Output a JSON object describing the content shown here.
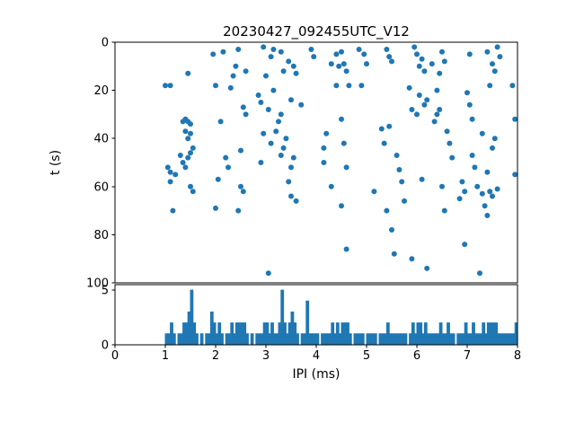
{
  "figure": {
    "background": "#ffffff",
    "accent": "#1f77b4",
    "spine_color": "#000000"
  },
  "chart_data": [
    {
      "type": "scatter",
      "title": "20230427_092455UTC_V12",
      "xlabel": "",
      "ylabel": "t (s)",
      "xlim": [
        0,
        8
      ],
      "ylim": [
        0,
        100
      ],
      "y_inverted": true,
      "yticks": [
        0,
        20,
        40,
        60,
        80,
        100
      ],
      "grid": false,
      "legend": "none",
      "marker_color": "#1f77b4",
      "points": [
        [
          1.95,
          5
        ],
        [
          2.45,
          3
        ],
        [
          2.95,
          2
        ],
        [
          3.1,
          6
        ],
        [
          3.3,
          4
        ],
        [
          3.45,
          8
        ],
        [
          3.9,
          3
        ],
        [
          3.95,
          6
        ],
        [
          4.4,
          5
        ],
        [
          4.5,
          4
        ],
        [
          4.85,
          3
        ],
        [
          5.4,
          3
        ],
        [
          5.45,
          6
        ],
        [
          6.0,
          5
        ],
        [
          6.1,
          7
        ],
        [
          6.5,
          4
        ],
        [
          7.4,
          4
        ],
        [
          7.6,
          2
        ],
        [
          7.65,
          6
        ],
        [
          2.15,
          4
        ],
        [
          3.15,
          3
        ],
        [
          4.95,
          5
        ],
        [
          5.95,
          2
        ],
        [
          7.05,
          5
        ],
        [
          1.45,
          13
        ],
        [
          2.4,
          10
        ],
        [
          2.6,
          12
        ],
        [
          3.0,
          14
        ],
        [
          3.35,
          12
        ],
        [
          3.55,
          10
        ],
        [
          3.6,
          13
        ],
        [
          4.3,
          9
        ],
        [
          4.45,
          10
        ],
        [
          4.55,
          9
        ],
        [
          4.6,
          12
        ],
        [
          5.0,
          9
        ],
        [
          5.5,
          8
        ],
        [
          6.05,
          10
        ],
        [
          6.15,
          12
        ],
        [
          6.3,
          9
        ],
        [
          6.55,
          8
        ],
        [
          7.5,
          9
        ],
        [
          7.55,
          12
        ],
        [
          2.35,
          14
        ],
        [
          6.45,
          13
        ],
        [
          1.0,
          18
        ],
        [
          1.1,
          18
        ],
        [
          2.0,
          18
        ],
        [
          2.3,
          19
        ],
        [
          2.85,
          22
        ],
        [
          3.15,
          20
        ],
        [
          3.5,
          24
        ],
        [
          4.4,
          18
        ],
        [
          4.65,
          18
        ],
        [
          4.9,
          18
        ],
        [
          5.85,
          19
        ],
        [
          6.05,
          22
        ],
        [
          6.2,
          24
        ],
        [
          7.0,
          21
        ],
        [
          7.45,
          18
        ],
        [
          7.9,
          18
        ],
        [
          2.9,
          25
        ],
        [
          6.4,
          20
        ],
        [
          1.35,
          33
        ],
        [
          1.4,
          32
        ],
        [
          1.45,
          33
        ],
        [
          1.5,
          34
        ],
        [
          2.55,
          27
        ],
        [
          2.6,
          30
        ],
        [
          3.05,
          28
        ],
        [
          3.25,
          33
        ],
        [
          3.3,
          30
        ],
        [
          3.7,
          26
        ],
        [
          4.5,
          32
        ],
        [
          5.9,
          28
        ],
        [
          6.0,
          30
        ],
        [
          6.15,
          26
        ],
        [
          6.35,
          33
        ],
        [
          6.4,
          30
        ],
        [
          6.45,
          28
        ],
        [
          7.05,
          26
        ],
        [
          7.1,
          32
        ],
        [
          7.95,
          32
        ],
        [
          2.1,
          33
        ],
        [
          5.45,
          35
        ],
        [
          1.4,
          37
        ],
        [
          1.45,
          40
        ],
        [
          1.5,
          38
        ],
        [
          1.55,
          44
        ],
        [
          2.95,
          38
        ],
        [
          3.1,
          42
        ],
        [
          3.2,
          37
        ],
        [
          3.35,
          44
        ],
        [
          3.4,
          40
        ],
        [
          4.2,
          38
        ],
        [
          4.55,
          42
        ],
        [
          5.3,
          36
        ],
        [
          5.35,
          42
        ],
        [
          6.6,
          37
        ],
        [
          6.65,
          42
        ],
        [
          7.3,
          38
        ],
        [
          7.5,
          44
        ],
        [
          7.55,
          40
        ],
        [
          2.5,
          45
        ],
        [
          4.15,
          44
        ],
        [
          1.05,
          52
        ],
        [
          1.1,
          54
        ],
        [
          1.3,
          47
        ],
        [
          1.35,
          50
        ],
        [
          1.4,
          52
        ],
        [
          1.45,
          48
        ],
        [
          1.5,
          46
        ],
        [
          2.2,
          48
        ],
        [
          2.25,
          52
        ],
        [
          2.9,
          50
        ],
        [
          3.3,
          47
        ],
        [
          3.5,
          52
        ],
        [
          3.55,
          48
        ],
        [
          4.15,
          50
        ],
        [
          4.6,
          52
        ],
        [
          5.6,
          47
        ],
        [
          5.65,
          53
        ],
        [
          6.7,
          48
        ],
        [
          7.1,
          47
        ],
        [
          7.15,
          52
        ],
        [
          7.4,
          54
        ],
        [
          7.95,
          55
        ],
        [
          1.2,
          55
        ],
        [
          1.1,
          58
        ],
        [
          1.5,
          60
        ],
        [
          1.55,
          62
        ],
        [
          2.05,
          57
        ],
        [
          2.5,
          60
        ],
        [
          2.55,
          62
        ],
        [
          3.45,
          58
        ],
        [
          3.5,
          64
        ],
        [
          4.3,
          60
        ],
        [
          5.15,
          62
        ],
        [
          5.7,
          58
        ],
        [
          6.1,
          57
        ],
        [
          6.5,
          60
        ],
        [
          6.9,
          58
        ],
        [
          6.95,
          62
        ],
        [
          7.2,
          60
        ],
        [
          7.3,
          63
        ],
        [
          7.45,
          62
        ],
        [
          7.5,
          64
        ],
        [
          7.6,
          61
        ],
        [
          6.85,
          65
        ],
        [
          1.15,
          70
        ],
        [
          2.45,
          70
        ],
        [
          3.6,
          66
        ],
        [
          4.5,
          68
        ],
        [
          5.4,
          70
        ],
        [
          5.75,
          66
        ],
        [
          7.35,
          68
        ],
        [
          7.4,
          72
        ],
        [
          2.0,
          69
        ],
        [
          6.55,
          70
        ],
        [
          3.05,
          96
        ],
        [
          4.6,
          86
        ],
        [
          5.5,
          78
        ],
        [
          5.9,
          90
        ],
        [
          6.2,
          94
        ],
        [
          6.95,
          84
        ],
        [
          7.25,
          96
        ],
        [
          5.55,
          88
        ]
      ]
    },
    {
      "type": "bar",
      "title": "",
      "xlabel": "IPI (ms)",
      "ylabel": "",
      "xlim": [
        0,
        8
      ],
      "ylim": [
        0,
        5.5
      ],
      "yticks": [
        0,
        5
      ],
      "xticks": [
        0,
        1,
        2,
        3,
        4,
        5,
        6,
        7,
        8
      ],
      "grid": false,
      "legend": "none",
      "bar_color": "#1f77b4",
      "bin_start": 0,
      "bin_width": 0.05,
      "counts": [
        0,
        0,
        0,
        0,
        0,
        0,
        0,
        0,
        0,
        0,
        0,
        0,
        0,
        0,
        0,
        0,
        0,
        0,
        0,
        0,
        1,
        1,
        2,
        1,
        0,
        1,
        1,
        2,
        2,
        3,
        5,
        2,
        1,
        0,
        1,
        0,
        1,
        1,
        3,
        2,
        1,
        2,
        1,
        0,
        1,
        1,
        2,
        1,
        2,
        2,
        2,
        2,
        1,
        0,
        1,
        0,
        1,
        1,
        1,
        2,
        2,
        1,
        2,
        1,
        1,
        2,
        5,
        2,
        1,
        2,
        3,
        2,
        1,
        0,
        1,
        1,
        4,
        1,
        1,
        1,
        1,
        0,
        1,
        1,
        1,
        1,
        2,
        1,
        2,
        1,
        2,
        2,
        2,
        1,
        0,
        1,
        1,
        1,
        1,
        0,
        1,
        1,
        1,
        1,
        0,
        1,
        1,
        1,
        2,
        1,
        1,
        1,
        1,
        1,
        1,
        1,
        0,
        1,
        2,
        1,
        2,
        2,
        1,
        2,
        1,
        1,
        1,
        1,
        1,
        2,
        1,
        1,
        2,
        1,
        1,
        0,
        1,
        1,
        1,
        2,
        1,
        1,
        2,
        1,
        1,
        1,
        2,
        1,
        2,
        2,
        2,
        2,
        1,
        1,
        1,
        1,
        1,
        1,
        1,
        2
      ]
    }
  ]
}
